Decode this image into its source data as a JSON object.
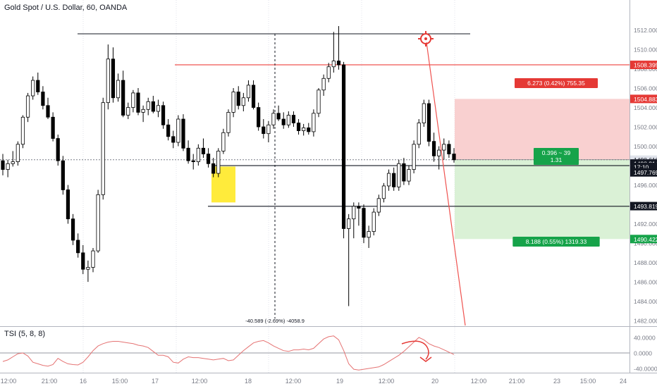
{
  "header": {
    "symbol_title": "Gold Spot / U.S. Dollar, 60, OANDA"
  },
  "colors": {
    "up_candle": "#ffffff",
    "down_candle": "#000000",
    "wick": "#000000",
    "resistance_line": "#ef5350",
    "stop_zone": "#f8c8c8",
    "target_zone": "#d6f0d2",
    "highlight_box": "#ffeb3b",
    "tsi_line": "#e57373",
    "tsi_arrow": "#e53935",
    "target_icon": "#e53935",
    "red_label": "#e53935",
    "green_label": "#16a34a"
  },
  "price_axis": {
    "ticks": [
      "1512.000",
      "1510.000",
      "1508.000",
      "1506.000",
      "1504.000",
      "1502.000",
      "1500.000",
      "1498.000",
      "1496.000",
      "1494.000",
      "1492.000",
      "1490.000",
      "1488.000",
      "1486.000",
      "1484.000",
      "1482.000"
    ],
    "labels": [
      {
        "text": "1508.395",
        "price": 1508.395,
        "style": "red"
      },
      {
        "text": "1504.883",
        "price": 1504.883,
        "style": "red"
      },
      {
        "text": "1498.610",
        "price": 1498.61,
        "style": "gray"
      },
      {
        "text": "1498.214",
        "price": 1498.214,
        "style": "dark"
      },
      {
        "text": "17:10",
        "price": 1497.86,
        "style": "dark"
      },
      {
        "text": "1497.769",
        "price": 1497.3,
        "style": "dark"
      },
      {
        "text": "1493.819",
        "price": 1493.819,
        "style": "dark"
      },
      {
        "text": "1490.422",
        "price": 1490.422,
        "style": "green"
      }
    ]
  },
  "time_axis": {
    "labels": [
      "12:00",
      "21:00",
      "16",
      "15:00",
      "17",
      "12:00",
      "18",
      "12:00",
      "19",
      "12:00",
      "20",
      "12:00",
      "21:00",
      "23",
      "15:00",
      "24"
    ]
  },
  "position_tool": {
    "stop_label": "6.273 (0.42%) 755.35",
    "entry_label_line1": "0.396 ~ 39",
    "entry_label_line2": "1.31",
    "target_label": "8.188 (0.55%) 1319.33"
  },
  "measure_label": "-40.589 (-2.69%) -4058.9",
  "tsi": {
    "label": "TSI (5, 8, 8)",
    "ticks": [
      "40.0000",
      "0.0000",
      "-40.0000"
    ],
    "values": [
      -22,
      -18,
      -10,
      -2,
      0,
      -8,
      -24,
      -28,
      -32,
      -34,
      -30,
      -14,
      -22,
      -28,
      -30,
      -31,
      -24,
      -10,
      6,
      18,
      24,
      28,
      30,
      30,
      28,
      26,
      24,
      20,
      18,
      14,
      4,
      -6,
      -6,
      -10,
      -24,
      -26,
      -16,
      -10,
      -12,
      -12,
      -14,
      -16,
      -18,
      -16,
      -14,
      -20,
      -18,
      -6,
      6,
      16,
      26,
      30,
      32,
      26,
      18,
      12,
      6,
      4,
      8,
      8,
      10,
      8,
      12,
      24,
      36,
      42,
      44,
      34,
      6,
      -28,
      -42,
      -44,
      -42,
      -40,
      -38,
      -36,
      -30,
      -22,
      -14,
      -6,
      4,
      16,
      28,
      40,
      34,
      24,
      18,
      14,
      8,
      2,
      -4
    ]
  },
  "chart_data": {
    "type": "candlestick",
    "title": "Gold Spot / U.S. Dollar, 60, OANDA",
    "yrange": [
      1481.5,
      1513.2
    ],
    "candles": [
      [
        1498.5,
        1499.2,
        1497.0,
        1497.6
      ],
      [
        1497.6,
        1498.6,
        1496.8,
        1498.2
      ],
      [
        1498.2,
        1499.5,
        1497.9,
        1498.4
      ],
      [
        1498.4,
        1500.5,
        1498.0,
        1500.2
      ],
      [
        1500.2,
        1503.2,
        1499.8,
        1503.0
      ],
      [
        1503.0,
        1505.5,
        1502.5,
        1505.2
      ],
      [
        1505.2,
        1507.2,
        1504.8,
        1506.8
      ],
      [
        1506.8,
        1507.6,
        1505.3,
        1505.6
      ],
      [
        1505.6,
        1506.2,
        1503.8,
        1504.2
      ],
      [
        1504.2,
        1505.0,
        1502.8,
        1503.0
      ],
      [
        1503.0,
        1503.5,
        1500.5,
        1500.8
      ],
      [
        1500.8,
        1501.2,
        1498.0,
        1498.5
      ],
      [
        1498.5,
        1499.0,
        1495.0,
        1495.5
      ],
      [
        1495.5,
        1496.0,
        1492.0,
        1492.5
      ],
      [
        1492.5,
        1493.0,
        1489.8,
        1490.3
      ],
      [
        1490.3,
        1491.0,
        1488.5,
        1489.0
      ],
      [
        1489.0,
        1489.8,
        1486.8,
        1487.3
      ],
      [
        1487.3,
        1488.2,
        1486.0,
        1487.5
      ],
      [
        1487.5,
        1489.5,
        1487.0,
        1489.2
      ],
      [
        1489.2,
        1495.5,
        1489.0,
        1495.0
      ],
      [
        1495.0,
        1505.0,
        1494.5,
        1504.5
      ],
      [
        1504.5,
        1510.5,
        1503.8,
        1509.0
      ],
      [
        1509.0,
        1510.2,
        1504.5,
        1505.0
      ],
      [
        1505.0,
        1507.5,
        1504.6,
        1506.8
      ],
      [
        1506.8,
        1507.8,
        1503.0,
        1503.2
      ],
      [
        1503.2,
        1504.5,
        1502.8,
        1504.0
      ],
      [
        1504.0,
        1505.8,
        1503.5,
        1505.5
      ],
      [
        1505.5,
        1506.0,
        1503.2,
        1503.5
      ],
      [
        1503.5,
        1504.2,
        1502.5,
        1503.8
      ],
      [
        1503.8,
        1505.0,
        1503.2,
        1504.6
      ],
      [
        1504.6,
        1505.2,
        1503.4,
        1503.6
      ],
      [
        1503.6,
        1504.8,
        1503.0,
        1504.2
      ],
      [
        1504.2,
        1504.6,
        1501.8,
        1502.2
      ],
      [
        1502.2,
        1502.8,
        1500.6,
        1501.0
      ],
      [
        1501.0,
        1501.6,
        1499.8,
        1500.4
      ],
      [
        1500.4,
        1503.2,
        1500.0,
        1502.8
      ],
      [
        1502.8,
        1503.3,
        1499.5,
        1499.8
      ],
      [
        1499.8,
        1500.6,
        1498.2,
        1498.5
      ],
      [
        1498.5,
        1499.2,
        1497.6,
        1498.4
      ],
      [
        1498.4,
        1500.2,
        1498.0,
        1499.8
      ],
      [
        1499.8,
        1500.8,
        1498.8,
        1499.2
      ],
      [
        1499.2,
        1499.8,
        1497.8,
        1498.2
      ],
      [
        1498.2,
        1498.8,
        1496.8,
        1497.2
      ],
      [
        1497.2,
        1499.8,
        1496.8,
        1499.5
      ],
      [
        1499.5,
        1501.8,
        1499.2,
        1501.4
      ],
      [
        1501.4,
        1503.8,
        1501.0,
        1503.5
      ],
      [
        1503.5,
        1506.0,
        1503.0,
        1505.6
      ],
      [
        1505.6,
        1506.2,
        1503.8,
        1504.2
      ],
      [
        1504.2,
        1505.5,
        1503.6,
        1505.0
      ],
      [
        1505.0,
        1506.8,
        1504.6,
        1506.3
      ],
      [
        1506.3,
        1506.8,
        1503.8,
        1504.0
      ],
      [
        1504.0,
        1504.5,
        1501.6,
        1502.0
      ],
      [
        1502.0,
        1502.8,
        1500.8,
        1501.3
      ],
      [
        1501.3,
        1502.6,
        1500.4,
        1502.2
      ],
      [
        1502.2,
        1503.8,
        1501.8,
        1503.4
      ],
      [
        1503.4,
        1504.2,
        1502.6,
        1502.8
      ],
      [
        1502.8,
        1503.5,
        1501.8,
        1502.2
      ],
      [
        1502.2,
        1503.6,
        1501.9,
        1503.2
      ],
      [
        1503.2,
        1503.6,
        1502.0,
        1502.4
      ],
      [
        1502.4,
        1502.8,
        1501.2,
        1501.6
      ],
      [
        1501.6,
        1502.3,
        1501.1,
        1501.9
      ],
      [
        1501.9,
        1502.4,
        1501.2,
        1501.5
      ],
      [
        1501.5,
        1503.8,
        1501.0,
        1503.4
      ],
      [
        1503.4,
        1506.0,
        1503.0,
        1505.8
      ],
      [
        1505.8,
        1507.4,
        1505.2,
        1507.0
      ],
      [
        1507.0,
        1508.6,
        1506.6,
        1508.2
      ],
      [
        1508.2,
        1511.8,
        1507.6,
        1508.8
      ],
      [
        1508.8,
        1512.4,
        1507.9,
        1508.4
      ],
      [
        1508.4,
        1508.7,
        1490.5,
        1491.5
      ],
      [
        1491.5,
        1493.0,
        1483.5,
        1492.5
      ],
      [
        1492.5,
        1494.2,
        1490.5,
        1493.8
      ],
      [
        1493.8,
        1494.2,
        1491.8,
        1493.6
      ],
      [
        1493.6,
        1494.0,
        1490.0,
        1490.6
      ],
      [
        1490.6,
        1491.8,
        1489.5,
        1491.2
      ],
      [
        1491.2,
        1493.6,
        1490.8,
        1493.2
      ],
      [
        1493.2,
        1495.0,
        1492.8,
        1494.6
      ],
      [
        1494.6,
        1496.2,
        1494.2,
        1495.9
      ],
      [
        1495.9,
        1497.6,
        1495.4,
        1497.2
      ],
      [
        1497.2,
        1497.8,
        1495.4,
        1495.8
      ],
      [
        1495.8,
        1498.6,
        1495.4,
        1498.2
      ],
      [
        1498.2,
        1498.8,
        1496.0,
        1496.4
      ],
      [
        1496.4,
        1498.0,
        1496.0,
        1497.6
      ],
      [
        1497.6,
        1500.6,
        1497.2,
        1500.2
      ],
      [
        1500.2,
        1502.8,
        1499.8,
        1502.4
      ],
      [
        1502.4,
        1504.8,
        1502.0,
        1504.4
      ],
      [
        1504.4,
        1504.8,
        1500.0,
        1500.5
      ],
      [
        1500.5,
        1501.4,
        1498.4,
        1499.0
      ],
      [
        1499.0,
        1500.0,
        1497.6,
        1499.6
      ],
      [
        1499.6,
        1500.8,
        1498.6,
        1500.2
      ],
      [
        1500.2,
        1500.6,
        1498.8,
        1499.2
      ],
      [
        1499.2,
        1499.8,
        1498.3,
        1498.6
      ]
    ]
  }
}
